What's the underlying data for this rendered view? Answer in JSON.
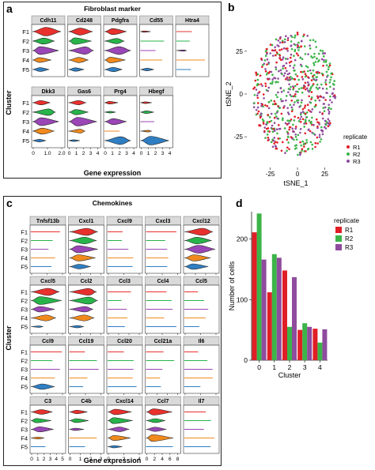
{
  "panel_labels": {
    "a": "a",
    "b": "b",
    "c": "c",
    "d": "d"
  },
  "colors": {
    "F1": "#e8302d",
    "F2": "#27b44a",
    "F3": "#9a46b6",
    "F4": "#f08a1e",
    "F5": "#2f7ec2",
    "R1": "#e01e26",
    "R2": "#3cb449",
    "R3": "#8f4b9e",
    "facet_header": "#d9d9d9"
  },
  "chart_data": [
    {
      "panel": "a",
      "type": "violin",
      "title": "Fibroblast marker",
      "ylabel": "Cluster",
      "xlabel": "Gene expression",
      "clusters": [
        "F1",
        "F2",
        "F3",
        "F4",
        "F5"
      ],
      "rows": [
        {
          "genes": [
            "Cdh11",
            "Cd248",
            "Pdgfra",
            "Cd55",
            "Htra4"
          ],
          "ticks": []
        },
        {
          "genes": [
            "Dkk3",
            "Gas6",
            "Prg4",
            "Hbegf"
          ],
          "ticks": [
            "0",
            "1.0",
            "2.0",
            "0",
            "1",
            "2",
            "3",
            "4",
            "0",
            "1",
            "2",
            "3",
            "4",
            "0",
            "1",
            "2",
            "3",
            "4"
          ]
        }
      ],
      "tick_groups": [
        {
          "gene": "Dkk3",
          "ticks": [
            "0",
            "1.0",
            "2.0"
          ]
        },
        {
          "gene": "Gas6",
          "ticks": [
            "0",
            "1",
            "2",
            "3",
            "4"
          ]
        },
        {
          "gene": "Prg4",
          "ticks": [
            "0",
            "1",
            "2",
            "3",
            "4"
          ]
        },
        {
          "gene": "Hbegf",
          "ticks": [
            "0",
            "1",
            "2",
            "3",
            "4"
          ]
        }
      ]
    },
    {
      "panel": "b",
      "type": "scatter",
      "xlabel": "tSNE_1",
      "ylabel": "tSNE_2",
      "xticks": [
        "-25",
        "0",
        "25"
      ],
      "yticks": [
        "-25",
        "0",
        "25"
      ],
      "xlim": [
        -45,
        42
      ],
      "ylim": [
        -42,
        42
      ],
      "legend_title": "replicate",
      "series": [
        {
          "name": "R1"
        },
        {
          "name": "R2"
        },
        {
          "name": "R3"
        }
      ]
    },
    {
      "panel": "c",
      "type": "violin",
      "title": "Chemokines",
      "ylabel": "Cluster",
      "xlabel": "Gene expression",
      "clusters": [
        "F1",
        "F2",
        "F3",
        "F4",
        "F5"
      ],
      "rows": [
        {
          "genes": [
            "Tnfsf13b",
            "Cxcl1",
            "Cxcl9",
            "Cxcl3",
            "Cxcl12"
          ],
          "ticks": [
            "0",
            "1",
            "2",
            "0",
            "2",
            "4",
            "6",
            "0",
            "1",
            "2",
            "0",
            "1",
            "2",
            "0",
            "2",
            "4",
            "6"
          ]
        },
        {
          "genes": [
            "Cxcl5",
            "Ccl2",
            "Ccl3",
            "Ccl4",
            "Ccl5"
          ],
          "ticks": [
            "0",
            "2",
            "4",
            "0",
            "2",
            "4",
            "6",
            "0",
            "1",
            "2",
            "3",
            "0",
            "1",
            "2",
            "0",
            "1",
            "2"
          ]
        },
        {
          "genes": [
            "Ccl9",
            "Ccl19",
            "Ccl20",
            "Ccl21a",
            "Il6"
          ],
          "ticks": [
            "0",
            "1",
            "2",
            "0",
            "1",
            "2",
            "0",
            "1",
            "2",
            "0",
            "1",
            "2",
            "3",
            "0",
            "1",
            "2"
          ]
        },
        {
          "genes": [
            "C3",
            "C4b",
            "Cxcl14",
            "Ccl7",
            "Il7"
          ],
          "ticks": [
            "0",
            "1",
            "2",
            "3",
            "4",
            "5",
            "0",
            "1",
            "2",
            "3",
            "0",
            "2",
            "4",
            "0",
            "2",
            "4",
            "6",
            "8"
          ]
        }
      ]
    },
    {
      "panel": "d",
      "type": "bar",
      "xlabel": "Cluster",
      "ylabel": "Number of cells",
      "categories": [
        "0",
        "1",
        "2",
        "3",
        "4"
      ],
      "yticks": [
        "0",
        "100",
        "200"
      ],
      "ylim": [
        0,
        245
      ],
      "legend_title": "replicate",
      "series": [
        {
          "name": "R1",
          "values": [
            211,
            112,
            148,
            50,
            52
          ]
        },
        {
          "name": "R2",
          "values": [
            242,
            175,
            55,
            61,
            29
          ]
        },
        {
          "name": "R3",
          "values": [
            166,
            169,
            137,
            55,
            51
          ]
        }
      ]
    }
  ]
}
